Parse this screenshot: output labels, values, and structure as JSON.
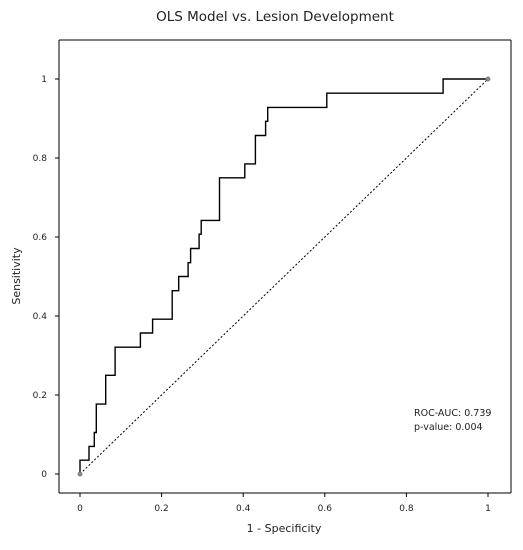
{
  "chart_data": {
    "type": "line",
    "title": "OLS Model vs. Lesion Development",
    "xlabel": "1 - Specificity",
    "ylabel": "Sensitivity",
    "xlim": [
      0,
      1
    ],
    "ylim": [
      0,
      1
    ],
    "xticks": [
      0,
      0.2,
      0.4,
      0.6,
      0.8,
      1
    ],
    "yticks": [
      0,
      0.2,
      0.4,
      0.6,
      0.8,
      1
    ],
    "xtick_labels": [
      "0",
      "0.2",
      "0.4",
      "0.6",
      "0.8",
      "1"
    ],
    "ytick_labels": [
      "0",
      "0.2",
      "0.4",
      "0.6",
      "0.8",
      "1"
    ],
    "grid": false,
    "series": [
      {
        "style": "step",
        "color": "#000000",
        "x": [
          0,
          0,
          0.022,
          0.022,
          0.035,
          0.035,
          0.04,
          0.04,
          0.063,
          0.063,
          0.086,
          0.086,
          0.096,
          0.096,
          0.148,
          0.148,
          0.178,
          0.178,
          0.226,
          0.226,
          0.232,
          0.232,
          0.242,
          0.242,
          0.265,
          0.265,
          0.271,
          0.271,
          0.292,
          0.292,
          0.297,
          0.297,
          0.342,
          0.342,
          0.404,
          0.404,
          0.43,
          0.43,
          0.455,
          0.455,
          0.46,
          0.46,
          0.605,
          0.605,
          0.89,
          0.89,
          1.0
        ],
        "y": [
          0,
          0.035,
          0.035,
          0.07,
          0.07,
          0.105,
          0.105,
          0.177,
          0.177,
          0.25,
          0.25,
          0.321,
          0.321,
          0.321,
          0.321,
          0.357,
          0.357,
          0.392,
          0.392,
          0.464,
          0.464,
          0.464,
          0.464,
          0.5,
          0.5,
          0.535,
          0.535,
          0.571,
          0.571,
          0.607,
          0.607,
          0.642,
          0.642,
          0.75,
          0.75,
          0.785,
          0.785,
          0.857,
          0.857,
          0.893,
          0.893,
          0.928,
          0.928,
          0.964,
          0.964,
          1.0,
          1.0
        ]
      },
      {
        "style": "dotted",
        "color": "#000000",
        "x": [
          0,
          1
        ],
        "y": [
          0,
          1
        ]
      }
    ],
    "endpoints": [
      [
        0,
        0
      ],
      [
        1,
        1
      ]
    ],
    "annotations": [
      "ROC-AUC: 0.739",
      "p-value: 0.004"
    ]
  }
}
